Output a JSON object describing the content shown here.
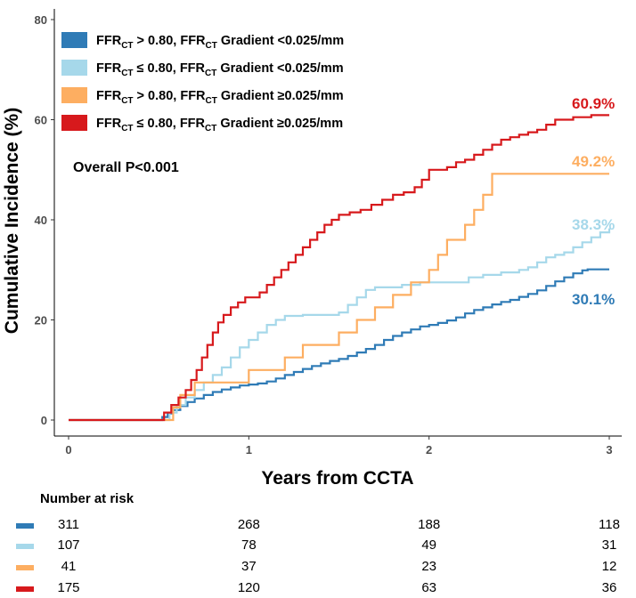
{
  "chart_data": {
    "type": "line",
    "subtype": "cumulative-incidence-step",
    "xlabel": "Years from CCTA",
    "ylabel": "Cumulative Incidence (%)",
    "xlim": [
      0,
      3.1
    ],
    "ylim": [
      0,
      80
    ],
    "x_ticks": [
      "0",
      "1",
      "2",
      "3"
    ],
    "y_ticks": [
      "0",
      "20",
      "40",
      "60",
      "80"
    ],
    "annotation": "Overall P<0.001",
    "legend_position": "top-left",
    "series": [
      {
        "name": "FFRCT > 0.80, FFRCT Gradient <0.025/mm",
        "legend_parts": {
          "a": "FFR",
          "a_sub": "CT",
          "b": " > 0.80, FFR",
          "b_sub": "CT",
          "c": " Gradient <0.025/mm"
        },
        "color": "#2f7bb6",
        "end_label": "30.1%",
        "end_value": 30.1,
        "points": [
          [
            0,
            0
          ],
          [
            0.5,
            0
          ],
          [
            0.52,
            0.6
          ],
          [
            0.55,
            1.3
          ],
          [
            0.58,
            2.0
          ],
          [
            0.62,
            2.8
          ],
          [
            0.66,
            3.6
          ],
          [
            0.7,
            4.3
          ],
          [
            0.75,
            5.0
          ],
          [
            0.8,
            5.6
          ],
          [
            0.85,
            6.1
          ],
          [
            0.9,
            6.5
          ],
          [
            0.95,
            6.9
          ],
          [
            1.0,
            7.1
          ],
          [
            1.05,
            7.3
          ],
          [
            1.1,
            7.7
          ],
          [
            1.15,
            8.3
          ],
          [
            1.2,
            9.0
          ],
          [
            1.25,
            9.6
          ],
          [
            1.3,
            10.2
          ],
          [
            1.35,
            10.8
          ],
          [
            1.4,
            11.3
          ],
          [
            1.45,
            11.8
          ],
          [
            1.5,
            12.2
          ],
          [
            1.55,
            12.8
          ],
          [
            1.6,
            13.5
          ],
          [
            1.65,
            14.2
          ],
          [
            1.7,
            15.0
          ],
          [
            1.75,
            16.0
          ],
          [
            1.8,
            16.8
          ],
          [
            1.85,
            17.5
          ],
          [
            1.9,
            18.1
          ],
          [
            1.95,
            18.7
          ],
          [
            2.0,
            19.0
          ],
          [
            2.05,
            19.4
          ],
          [
            2.1,
            19.9
          ],
          [
            2.15,
            20.5
          ],
          [
            2.2,
            21.3
          ],
          [
            2.25,
            22.0
          ],
          [
            2.3,
            22.5
          ],
          [
            2.35,
            23.1
          ],
          [
            2.4,
            23.6
          ],
          [
            2.45,
            24.0
          ],
          [
            2.5,
            24.6
          ],
          [
            2.55,
            25.2
          ],
          [
            2.6,
            25.9
          ],
          [
            2.65,
            26.8
          ],
          [
            2.7,
            27.7
          ],
          [
            2.75,
            28.5
          ],
          [
            2.8,
            29.3
          ],
          [
            2.85,
            29.9
          ],
          [
            2.88,
            30.1
          ],
          [
            3.0,
            30.1
          ]
        ]
      },
      {
        "name": "FFRCT ≤ 0.80, FFRCT Gradient <0.025/mm",
        "legend_parts": {
          "a": "FFR",
          "a_sub": "CT",
          "b": " ≤ 0.80, FFR",
          "b_sub": "CT",
          "c": " Gradient <0.025/mm"
        },
        "color": "#a6d8ea",
        "end_label": "38.3%",
        "end_value": 38.3,
        "points": [
          [
            0,
            0
          ],
          [
            0.52,
            0
          ],
          [
            0.56,
            1.5
          ],
          [
            0.6,
            3.0
          ],
          [
            0.65,
            4.5
          ],
          [
            0.7,
            6.0
          ],
          [
            0.75,
            7.5
          ],
          [
            0.8,
            9.0
          ],
          [
            0.85,
            10.5
          ],
          [
            0.9,
            12.5
          ],
          [
            0.95,
            14.5
          ],
          [
            1.0,
            16.0
          ],
          [
            1.05,
            17.5
          ],
          [
            1.1,
            19.0
          ],
          [
            1.15,
            20.0
          ],
          [
            1.2,
            20.8
          ],
          [
            1.3,
            21.0
          ],
          [
            1.4,
            21.0
          ],
          [
            1.5,
            21.5
          ],
          [
            1.55,
            23.0
          ],
          [
            1.6,
            24.5
          ],
          [
            1.65,
            26.0
          ],
          [
            1.7,
            26.5
          ],
          [
            1.75,
            26.5
          ],
          [
            1.85,
            27.0
          ],
          [
            1.95,
            27.5
          ],
          [
            2.05,
            27.5
          ],
          [
            2.15,
            27.5
          ],
          [
            2.22,
            28.5
          ],
          [
            2.3,
            29.0
          ],
          [
            2.4,
            29.5
          ],
          [
            2.5,
            30.0
          ],
          [
            2.55,
            30.5
          ],
          [
            2.6,
            31.5
          ],
          [
            2.65,
            32.5
          ],
          [
            2.7,
            33.0
          ],
          [
            2.75,
            33.5
          ],
          [
            2.8,
            34.5
          ],
          [
            2.85,
            35.5
          ],
          [
            2.9,
            36.5
          ],
          [
            2.95,
            37.5
          ],
          [
            3.0,
            38.3
          ]
        ]
      },
      {
        "name": "FFRCT > 0.80, FFRCT Gradient ≥0.025/mm",
        "legend_parts": {
          "a": "FFR",
          "a_sub": "CT",
          "b": " > 0.80, FFR",
          "b_sub": "CT",
          "c": " Gradient ≥0.025/mm"
        },
        "color": "#fdae61",
        "end_label": "49.2%",
        "end_value": 49.2,
        "points": [
          [
            0,
            0
          ],
          [
            0.55,
            0
          ],
          [
            0.58,
            2.5
          ],
          [
            0.62,
            5.0
          ],
          [
            0.7,
            7.5
          ],
          [
            0.9,
            7.5
          ],
          [
            1.0,
            10.0
          ],
          [
            1.1,
            10.0
          ],
          [
            1.2,
            12.5
          ],
          [
            1.3,
            15.0
          ],
          [
            1.4,
            15.0
          ],
          [
            1.5,
            17.5
          ],
          [
            1.6,
            20.0
          ],
          [
            1.7,
            22.5
          ],
          [
            1.8,
            25.0
          ],
          [
            1.9,
            27.5
          ],
          [
            2.0,
            30.0
          ],
          [
            2.05,
            33.0
          ],
          [
            2.1,
            36.0
          ],
          [
            2.2,
            39.0
          ],
          [
            2.25,
            42.0
          ],
          [
            2.3,
            45.0
          ],
          [
            2.35,
            49.2
          ],
          [
            3.0,
            49.2
          ]
        ]
      },
      {
        "name": "FFRCT ≤ 0.80, FFRCT Gradient ≥0.025/mm",
        "legend_parts": {
          "a": "FFR",
          "a_sub": "CT",
          "b": " ≤ 0.80, FFR",
          "b_sub": "CT",
          "c": " Gradient ≥0.025/mm"
        },
        "color": "#d7191c",
        "end_label": "60.9%",
        "end_value": 60.9,
        "points": [
          [
            0,
            0
          ],
          [
            0.5,
            0
          ],
          [
            0.53,
            1.5
          ],
          [
            0.57,
            3.0
          ],
          [
            0.61,
            4.5
          ],
          [
            0.65,
            6.0
          ],
          [
            0.68,
            8.0
          ],
          [
            0.71,
            10.0
          ],
          [
            0.74,
            12.5
          ],
          [
            0.77,
            15.0
          ],
          [
            0.8,
            17.5
          ],
          [
            0.83,
            19.5
          ],
          [
            0.86,
            21.0
          ],
          [
            0.9,
            22.5
          ],
          [
            0.94,
            23.5
          ],
          [
            0.98,
            24.5
          ],
          [
            1.02,
            24.5
          ],
          [
            1.06,
            25.5
          ],
          [
            1.1,
            27.0
          ],
          [
            1.14,
            28.5
          ],
          [
            1.18,
            30.0
          ],
          [
            1.22,
            31.5
          ],
          [
            1.26,
            33.0
          ],
          [
            1.3,
            34.5
          ],
          [
            1.34,
            36.0
          ],
          [
            1.38,
            37.5
          ],
          [
            1.42,
            39.0
          ],
          [
            1.46,
            40.0
          ],
          [
            1.5,
            41.0
          ],
          [
            1.56,
            41.5
          ],
          [
            1.62,
            42.0
          ],
          [
            1.68,
            43.0
          ],
          [
            1.74,
            44.0
          ],
          [
            1.8,
            45.0
          ],
          [
            1.86,
            45.5
          ],
          [
            1.92,
            46.5
          ],
          [
            1.96,
            48.0
          ],
          [
            2.0,
            50.0
          ],
          [
            2.05,
            50.0
          ],
          [
            2.1,
            50.5
          ],
          [
            2.15,
            51.5
          ],
          [
            2.2,
            52.0
          ],
          [
            2.25,
            53.0
          ],
          [
            2.3,
            54.0
          ],
          [
            2.35,
            55.0
          ],
          [
            2.4,
            56.0
          ],
          [
            2.45,
            56.5
          ],
          [
            2.5,
            57.0
          ],
          [
            2.55,
            57.5
          ],
          [
            2.6,
            58.0
          ],
          [
            2.65,
            59.0
          ],
          [
            2.7,
            60.0
          ],
          [
            2.8,
            60.5
          ],
          [
            2.9,
            60.9
          ],
          [
            3.0,
            60.9
          ]
        ]
      }
    ],
    "risk_table": {
      "title": "Number at risk",
      "times": [
        "0",
        "1",
        "2",
        "3"
      ],
      "rows": [
        {
          "color": "#2f7bb6",
          "values": [
            "311",
            "268",
            "188",
            "118"
          ]
        },
        {
          "color": "#a6d8ea",
          "values": [
            "107",
            "78",
            "49",
            "31"
          ]
        },
        {
          "color": "#fdae61",
          "values": [
            "41",
            "37",
            "23",
            "12"
          ]
        },
        {
          "color": "#d7191c",
          "values": [
            "175",
            "120",
            "63",
            "36"
          ]
        }
      ]
    }
  }
}
